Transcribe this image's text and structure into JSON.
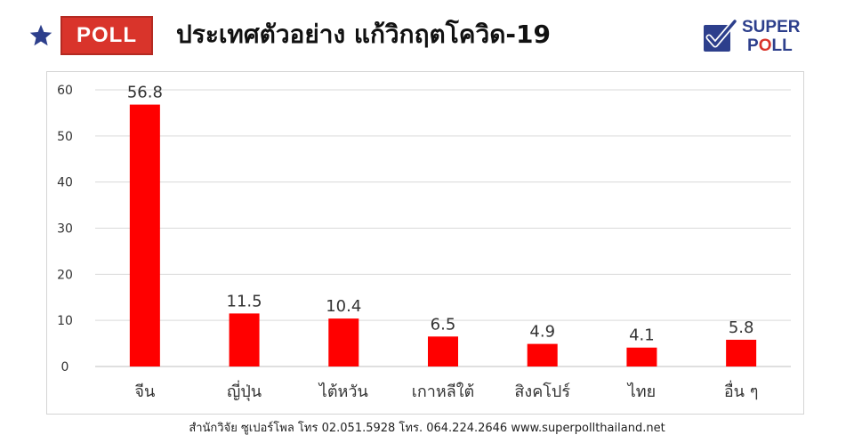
{
  "header": {
    "badge": "POLL",
    "title": "ประเทศตัวอย่าง แก้วิกฤตโควิด-19",
    "logo_line1": "SUPER",
    "logo_line2_a": "P",
    "logo_line2_o": "O",
    "logo_line2_b": "LL",
    "star_color": "#2d3f8c",
    "badge_color": "#d9342b"
  },
  "chart_data": {
    "type": "bar",
    "categories": [
      "จีน",
      "ญี่ปุ่น",
      "ไต้หวัน",
      "เกาหลีใต้",
      "สิงคโปร์",
      "ไทย",
      "อื่น ๆ"
    ],
    "values": [
      56.8,
      11.5,
      10.4,
      6.5,
      4.9,
      4.1,
      5.8
    ],
    "data_labels": [
      "56.8",
      "11.5",
      "10.4",
      "6.5",
      "4.9",
      "4.1",
      "5.8"
    ],
    "ylim": [
      0,
      60
    ],
    "yticks": [
      "0",
      "10",
      "20",
      "30",
      "40",
      "50",
      "60"
    ],
    "grid": true,
    "bar_color": "#ff0000",
    "title": "",
    "xlabel": "",
    "ylabel": ""
  },
  "footer": {
    "text": "สำนักวิจัย ซูเปอร์โพล โทร 02.051.5928  โทร. 064.224.2646 www.superpollthailand.net"
  }
}
